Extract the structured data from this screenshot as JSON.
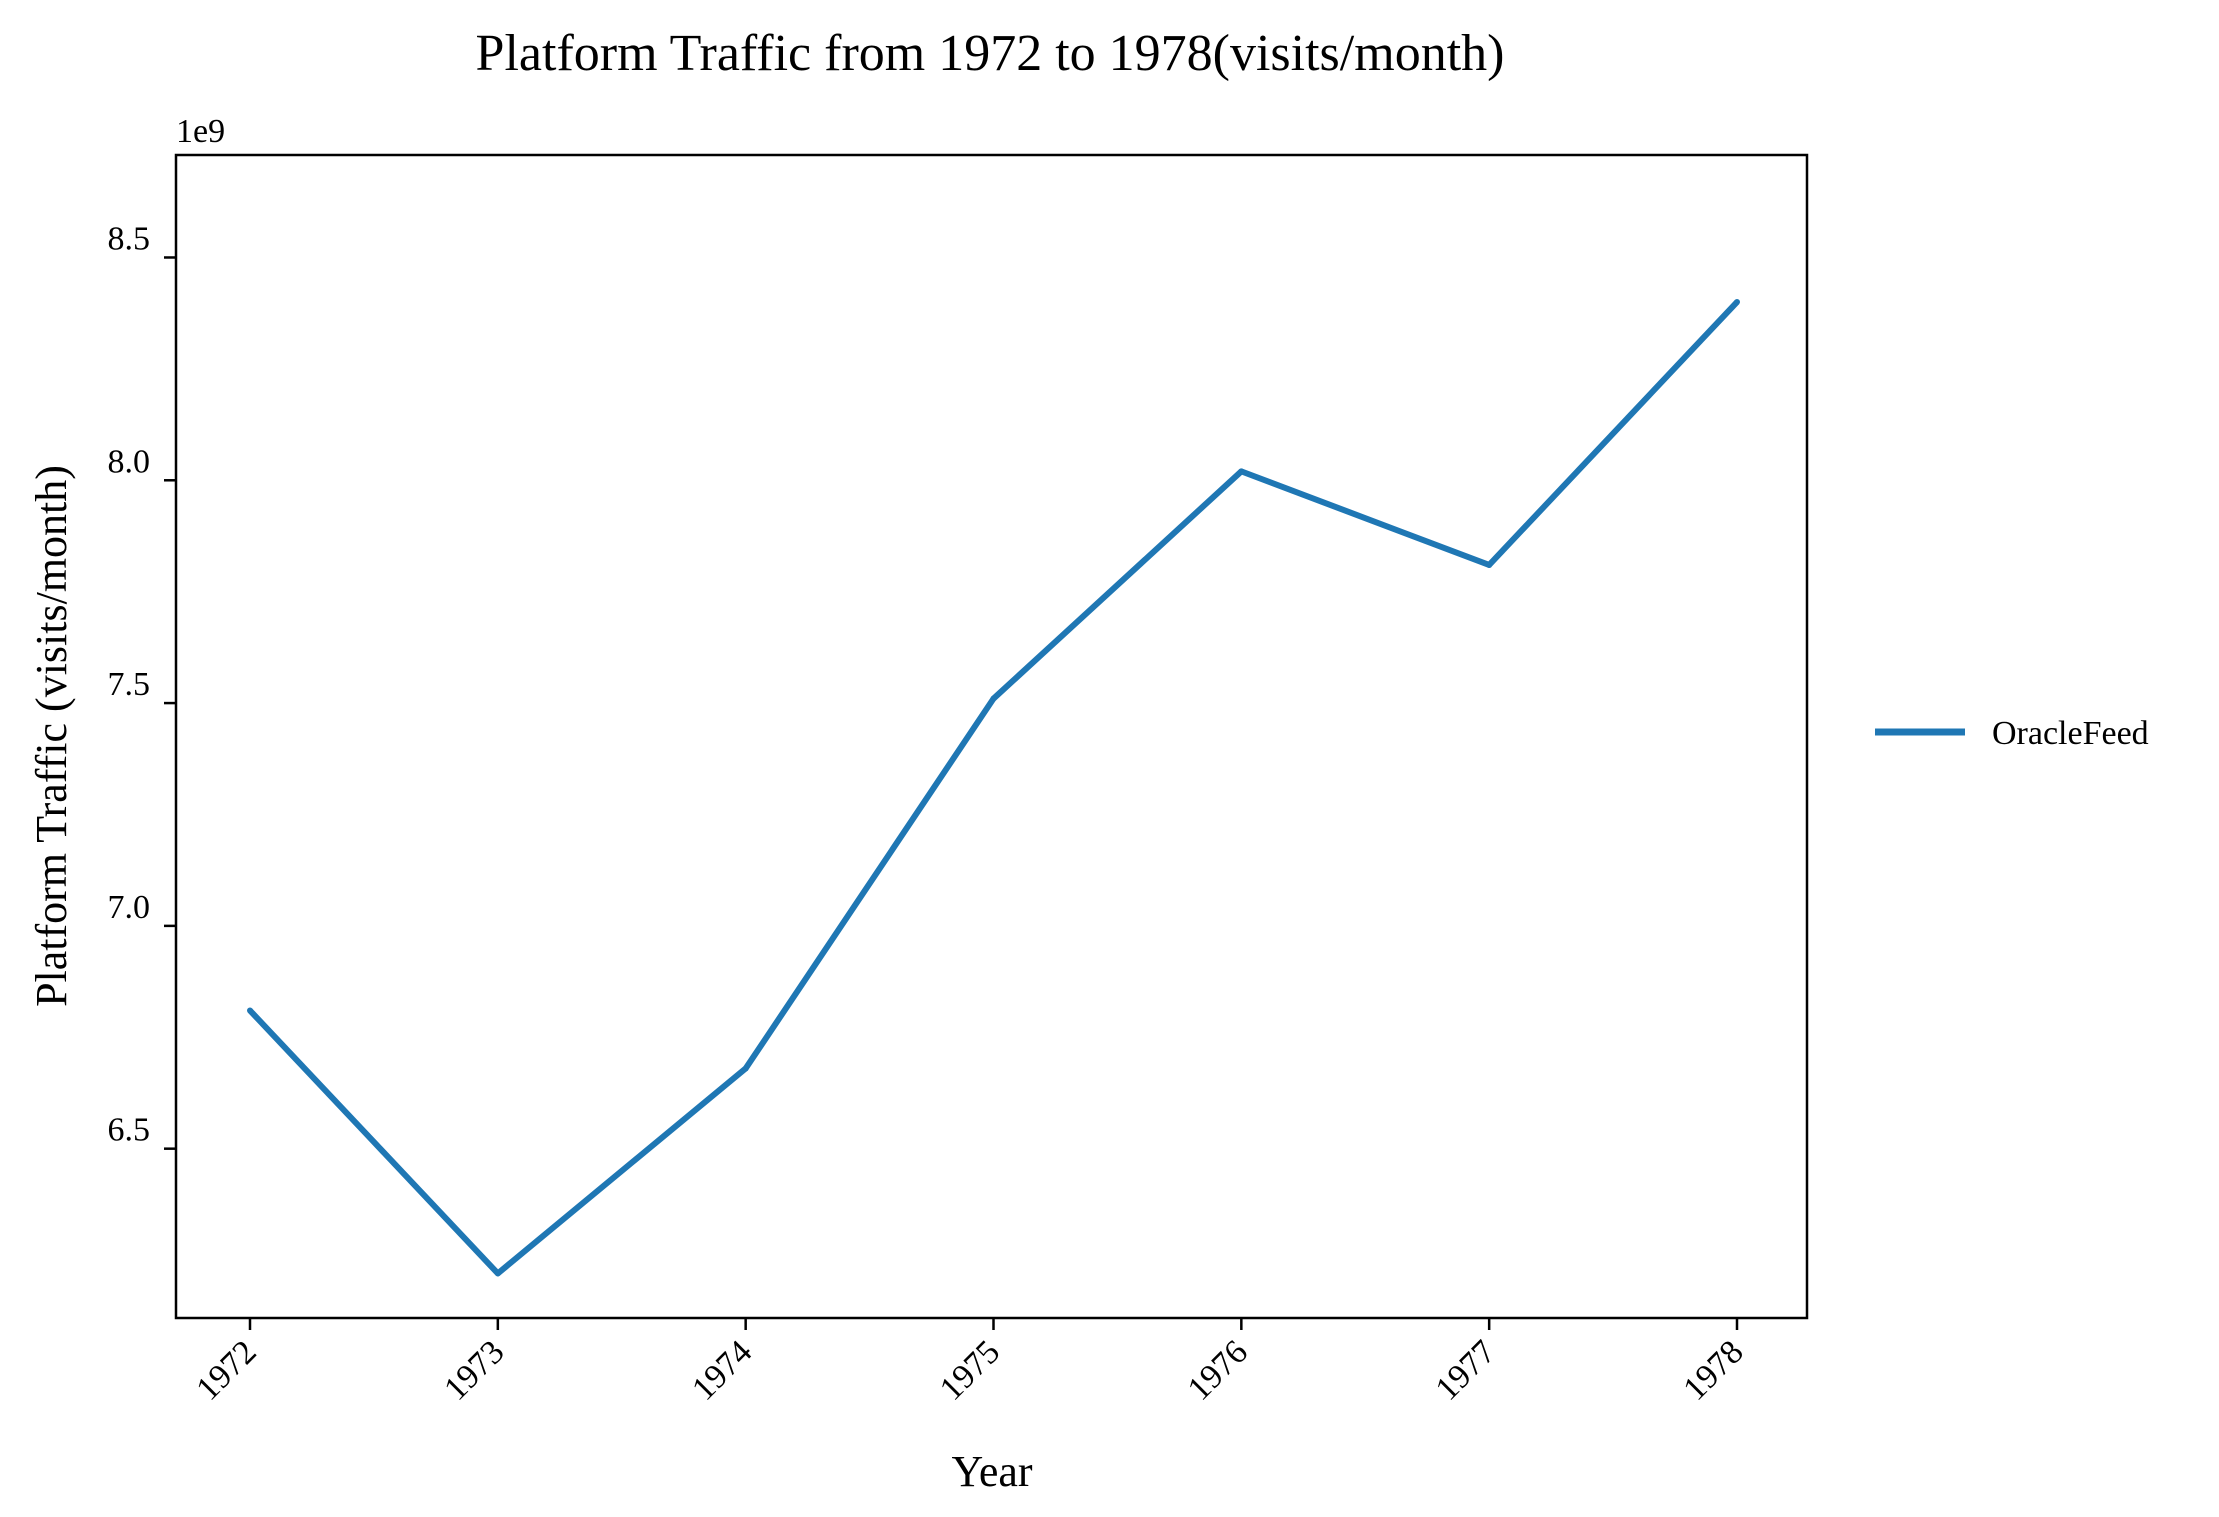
{
  "chart_data": {
    "type": "line",
    "title": "Platform Traffic from 1972 to 1978(visits/month)",
    "xlabel": "Year",
    "ylabel": "Platform Traffic (visits/month)",
    "y_offset_label": "1e9",
    "categories": [
      "1972",
      "1973",
      "1974",
      "1975",
      "1976",
      "1977",
      "1978"
    ],
    "series": [
      {
        "name": "OracleFeed",
        "color": "#1f77b4",
        "values": [
          6810000000,
          6220000000,
          6680000000,
          7510000000,
          8020000000,
          7810000000,
          8400000000
        ]
      }
    ],
    "ylim": [
      6120000000,
      8730000000
    ],
    "yticks": [
      6500000000,
      7000000000,
      7500000000,
      8000000000,
      8500000000
    ],
    "ytick_labels": [
      "6.5",
      "7.0",
      "7.5",
      "8.0",
      "8.5"
    ],
    "grid": false,
    "legend_position": "right"
  }
}
